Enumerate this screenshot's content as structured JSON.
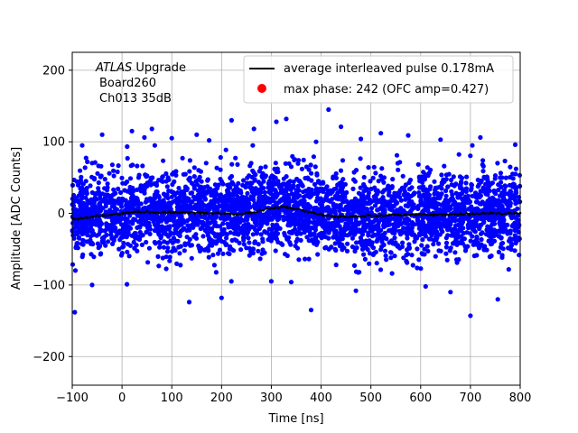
{
  "chart_data": {
    "type": "scatter",
    "annotation": {
      "experiment": "ATLAS",
      "experiment_suffix": " Upgrade",
      "board": "Board260",
      "channel": "Ch013 35dB"
    },
    "xlabel": "Time [ns]",
    "ylabel": "Amplitude [ADC Counts]",
    "xlim": [
      -100,
      800
    ],
    "ylim": [
      -240,
      225
    ],
    "xticks": [
      -100,
      0,
      100,
      200,
      300,
      400,
      500,
      600,
      700,
      800
    ],
    "yticks": [
      -200,
      -100,
      0,
      100,
      200
    ],
    "grid": true,
    "legend_position": "top-right",
    "series": [
      {
        "name": "average interleaved pulse 0.178mA",
        "kind": "line",
        "color": "#000000",
        "x": [
          -100,
          -75,
          -50,
          -25,
          0,
          25,
          50,
          75,
          100,
          125,
          150,
          175,
          200,
          225,
          250,
          275,
          300,
          325,
          350,
          375,
          400,
          425,
          450,
          475,
          500,
          525,
          550,
          575,
          600,
          625,
          650,
          675,
          700,
          725,
          750,
          775,
          800
        ],
        "y": [
          -8,
          -6,
          -4,
          -2,
          0,
          2,
          2,
          1,
          2,
          1,
          1,
          0,
          0,
          -1,
          0,
          3,
          7,
          9,
          6,
          2,
          -2,
          -4,
          -5,
          -4,
          -3,
          -3,
          -2,
          -2,
          -1,
          -2,
          -1,
          -1,
          -1,
          0,
          0,
          0,
          0
        ]
      },
      {
        "name": "max phase: 242 (OFC amp=0.427)",
        "kind": "scatter",
        "color": "#0000ff",
        "legend_marker_color": "#ff0000",
        "noise_sigma": 28,
        "outliers_x": [
          -95,
          -80,
          -60,
          -40,
          10,
          20,
          45,
          60,
          100,
          135,
          150,
          175,
          200,
          220,
          265,
          300,
          310,
          330,
          340,
          380,
          390,
          415,
          440,
          470,
          480,
          520,
          575,
          610,
          640,
          660,
          700,
          720,
          755,
          790
        ],
        "outliers_y": [
          -138,
          95,
          -100,
          110,
          -99,
          115,
          106,
          118,
          105,
          -124,
          110,
          102,
          -118,
          130,
          118,
          -95,
          128,
          132,
          -96,
          -135,
          100,
          145,
          121,
          -108,
          104,
          112,
          109,
          -102,
          103,
          -110,
          -143,
          106,
          -120,
          96
        ]
      }
    ]
  }
}
